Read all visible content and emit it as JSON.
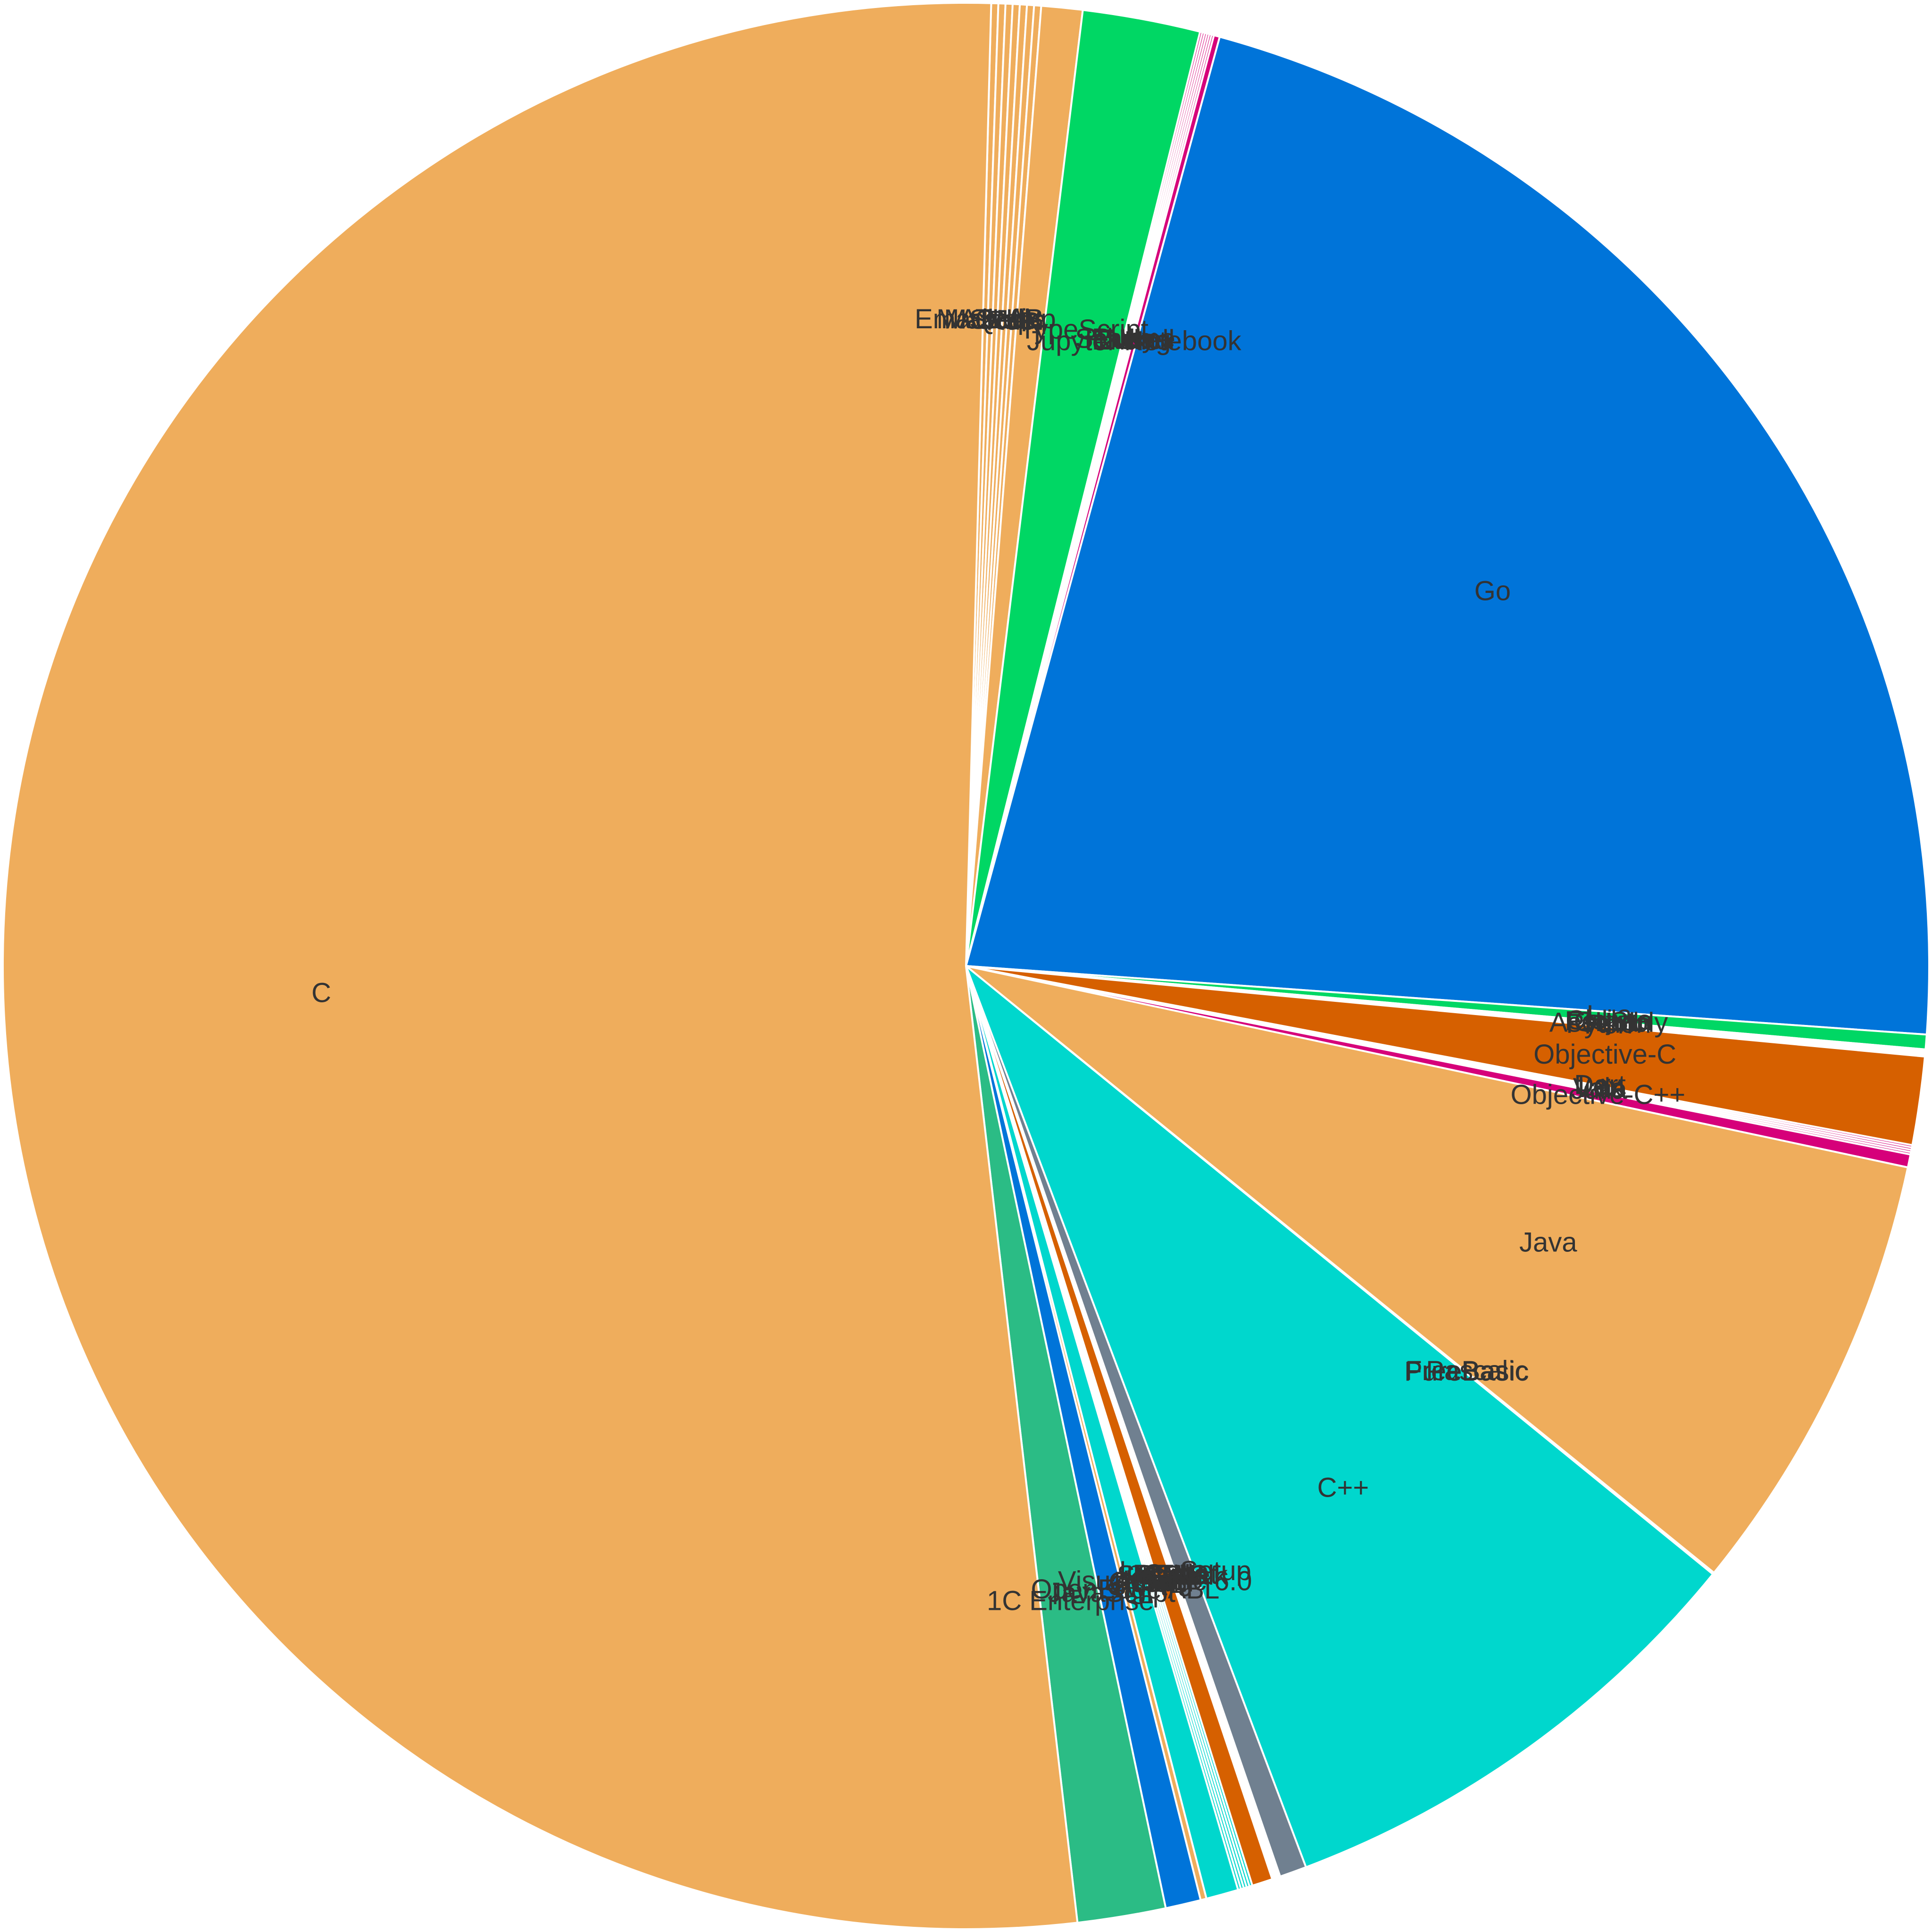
{
  "chart_data": {
    "type": "pie",
    "title": "",
    "start_angle_deg": 88.5,
    "direction": "clockwise",
    "slices": [
      {
        "label": "Emacs Lisp",
        "value": 0.12,
        "color": "#efad5c"
      },
      {
        "label": "MATLAB",
        "value": 0.12,
        "color": "#efad5c"
      },
      {
        "label": "Makefile",
        "value": 0.12,
        "color": "#efad5c"
      },
      {
        "label": "Shell",
        "value": 0.12,
        "color": "#efad5c"
      },
      {
        "label": "QML",
        "value": 0.12,
        "color": "#efad5c"
      },
      {
        "label": "Jq",
        "value": 0.12,
        "color": "#efad5c"
      },
      {
        "label": "Rust",
        "value": 0.12,
        "color": "#efad5c"
      },
      {
        "label": "R",
        "value": 0.7,
        "color": "#efad5c"
      },
      {
        "label": "TypeScript",
        "value": 2.0,
        "color": "#00d764"
      },
      {
        "label": "Ruby",
        "value": 0.04,
        "color": "#d6007a"
      },
      {
        "label": "Scheme",
        "value": 0.04,
        "color": "#d6007a"
      },
      {
        "label": "Nix",
        "value": 0.04,
        "color": "#d6007a"
      },
      {
        "label": "Julia",
        "value": 0.04,
        "color": "#d6007a"
      },
      {
        "label": "Haskell",
        "value": 0.04,
        "color": "#d6007a"
      },
      {
        "label": "Erlang",
        "value": 0.04,
        "color": "#d6007a"
      },
      {
        "label": "Jupyter Notebook",
        "value": 0.1,
        "color": "#d6007a"
      },
      {
        "label": "Go",
        "value": 22.2,
        "color": "#0074d9"
      },
      {
        "label": "Lua",
        "value": 0.25,
        "color": "#00d764"
      },
      {
        "label": "Clojure",
        "value": 0.02,
        "color": "#d66000"
      },
      {
        "label": "Fortran",
        "value": 0.02,
        "color": "#d66000"
      },
      {
        "label": "GLSL",
        "value": 0.02,
        "color": "#d66000"
      },
      {
        "label": "Assembly",
        "value": 0.02,
        "color": "#d66000"
      },
      {
        "label": "Python",
        "value": 0.02,
        "color": "#d66000"
      },
      {
        "label": "Perl",
        "value": 0.02,
        "color": "#d66000"
      },
      {
        "label": "Objective-C",
        "value": 1.5,
        "color": "#d66000"
      },
      {
        "label": "Dart",
        "value": 0.04,
        "color": "#d6007a"
      },
      {
        "label": "Lex",
        "value": 0.04,
        "color": "#d6007a"
      },
      {
        "label": "Vala",
        "value": 0.04,
        "color": "#d6007a"
      },
      {
        "label": "Julia",
        "value": 0.04,
        "color": "#d6007a"
      },
      {
        "label": "Objective-C++",
        "value": 0.22,
        "color": "#d6007a"
      },
      {
        "label": "Java",
        "value": 7.6,
        "color": "#efad5c"
      },
      {
        "label": "Pascal",
        "value": 0.01,
        "color": "#00d7cd"
      },
      {
        "label": "FreeBasic",
        "value": 0.01,
        "color": "#00d7cd"
      },
      {
        "label": "PureBasic",
        "value": 0.01,
        "color": "#00d7cd"
      },
      {
        "label": "C++",
        "value": 8.5,
        "color": "#00d7cd"
      },
      {
        "label": "Inno Setup",
        "value": 0.46,
        "color": "#708090"
      },
      {
        "label": "Cuda",
        "value": 0.02,
        "color": "#d66000"
      },
      {
        "label": "Racket",
        "value": 0.02,
        "color": "#d66000"
      },
      {
        "label": "HTML",
        "value": 0.02,
        "color": "#d66000"
      },
      {
        "label": "Tcl",
        "value": 0.02,
        "color": "#d66000"
      },
      {
        "label": "SWIG",
        "value": 0.02,
        "color": "#d66000"
      },
      {
        "label": "Smalltalk",
        "value": 0.02,
        "color": "#d66000"
      },
      {
        "label": "SQL",
        "value": 0.02,
        "color": "#d66000"
      },
      {
        "label": "C#",
        "value": 0.35,
        "color": "#d66000"
      },
      {
        "label": "Kotlin",
        "value": 0.05,
        "color": "#00d7cd"
      },
      {
        "label": "Visual Basic 6.0",
        "value": 0.05,
        "color": "#00d7cd"
      },
      {
        "label": "Prolog",
        "value": 0.05,
        "color": "#00d7cd"
      },
      {
        "label": "OCaml",
        "value": 0.05,
        "color": "#00d7cd"
      },
      {
        "label": "AutoIt",
        "value": 0.05,
        "color": "#00d7cd"
      },
      {
        "label": "Swift",
        "value": 0.55,
        "color": "#00d7cd"
      },
      {
        "label": "OpenEdge ABL",
        "value": 0.1,
        "color": "#efad5c"
      },
      {
        "label": "JavaScript",
        "value": 0.6,
        "color": "#0074d9"
      },
      {
        "label": "1C Enterprise",
        "value": 1.5,
        "color": "#2bbc85"
      },
      {
        "label": "C",
        "value": 53.0,
        "color": "#efad5c"
      }
    ]
  }
}
